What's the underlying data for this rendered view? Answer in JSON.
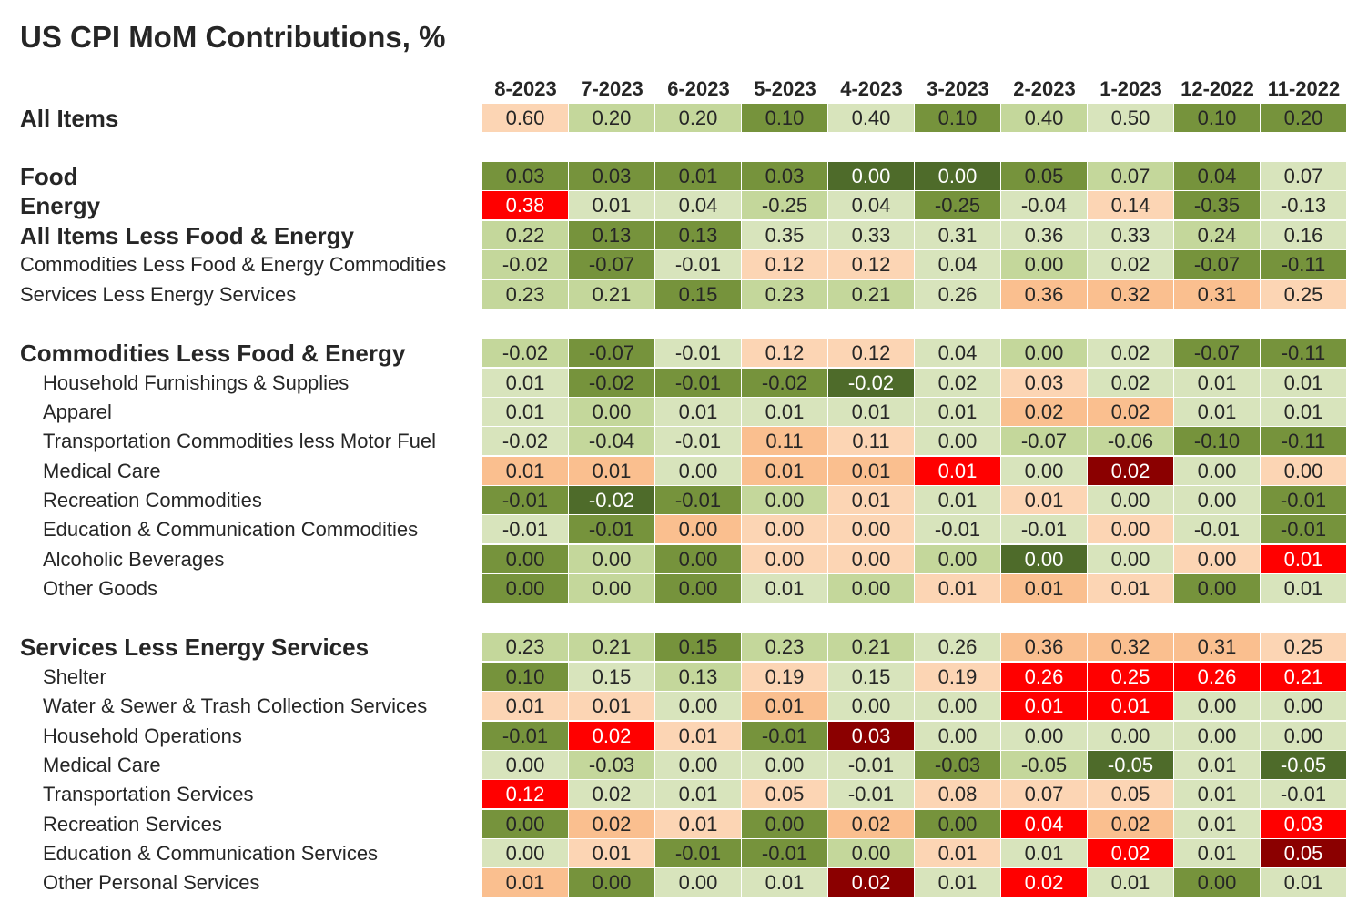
{
  "title": "US CPI MoM Contributions, %",
  "columns": [
    "8-2023",
    "7-2023",
    "6-2023",
    "5-2023",
    "4-2023",
    "3-2023",
    "2-2023",
    "1-2023",
    "12-2022",
    "11-2022"
  ],
  "palette": {
    "dark_green": "#4e6b2a",
    "green": "#76933c",
    "light_green": "#c4d79b",
    "pale_green": "#d8e4bc",
    "pale_orange": "#fcd5b4",
    "orange": "#fabf8f",
    "red": "#ff0000",
    "dark_red": "#8b0000"
  },
  "chart_data": {
    "type": "heatmap",
    "title": "US CPI MoM Contributions, %",
    "x": [
      "8-2023",
      "7-2023",
      "6-2023",
      "5-2023",
      "4-2023",
      "3-2023",
      "2-2023",
      "1-2023",
      "12-2022",
      "11-2022"
    ],
    "rows": [
      {
        "label": "All Items",
        "style": "bold",
        "values": [
          "0.60",
          "0.20",
          "0.20",
          "0.10",
          "0.40",
          "0.10",
          "0.40",
          "0.50",
          "0.10",
          "0.20"
        ],
        "colors": [
          "po",
          "lg",
          "lg",
          "g",
          "pg",
          "g",
          "lg",
          "pg",
          "g",
          "g"
        ]
      },
      {
        "label": "Food",
        "style": "bold",
        "values": [
          "0.03",
          "0.03",
          "0.01",
          "0.03",
          "0.00",
          "0.00",
          "0.05",
          "0.07",
          "0.04",
          "0.07"
        ],
        "colors": [
          "g",
          "g",
          "g",
          "g",
          "dg",
          "dg",
          "g",
          "lg",
          "g",
          "pg"
        ]
      },
      {
        "label": "Energy",
        "style": "bold",
        "values": [
          "0.38",
          "0.01",
          "0.04",
          "-0.25",
          "0.04",
          "-0.25",
          "-0.04",
          "0.14",
          "-0.35",
          "-0.13"
        ],
        "colors": [
          "r",
          "pg",
          "pg",
          "lg",
          "pg",
          "g",
          "pg",
          "po",
          "g",
          "pg"
        ]
      },
      {
        "label": "All Items Less Food & Energy",
        "style": "bold",
        "values": [
          "0.22",
          "0.13",
          "0.13",
          "0.35",
          "0.33",
          "0.31",
          "0.36",
          "0.33",
          "0.24",
          "0.16"
        ],
        "colors": [
          "lg",
          "g",
          "g",
          "pg",
          "pg",
          "pg",
          "pg",
          "pg",
          "lg",
          "pg"
        ]
      },
      {
        "label": "Commodities Less Food & Energy Commodities",
        "style": "reg",
        "values": [
          "-0.02",
          "-0.07",
          "-0.01",
          "0.12",
          "0.12",
          "0.04",
          "0.00",
          "0.02",
          "-0.07",
          "-0.11"
        ],
        "colors": [
          "lg",
          "g",
          "pg",
          "po",
          "po",
          "pg",
          "lg",
          "pg",
          "g",
          "g"
        ]
      },
      {
        "label": "Services Less Energy Services",
        "style": "reg",
        "values": [
          "0.23",
          "0.21",
          "0.15",
          "0.23",
          "0.21",
          "0.26",
          "0.36",
          "0.32",
          "0.31",
          "0.25"
        ],
        "colors": [
          "lg",
          "lg",
          "g",
          "lg",
          "lg",
          "pg",
          "o",
          "o",
          "o",
          "po"
        ]
      },
      {
        "label": "Commodities Less Food & Energy",
        "style": "bold",
        "values": [
          "-0.02",
          "-0.07",
          "-0.01",
          "0.12",
          "0.12",
          "0.04",
          "0.00",
          "0.02",
          "-0.07",
          "-0.11"
        ],
        "colors": [
          "lg",
          "g",
          "pg",
          "po",
          "po",
          "pg",
          "lg",
          "pg",
          "g",
          "g"
        ]
      },
      {
        "label": "Household Furnishings & Supplies",
        "style": "reg",
        "values": [
          "0.01",
          "-0.02",
          "-0.01",
          "-0.02",
          "-0.02",
          "0.02",
          "0.03",
          "0.02",
          "0.01",
          "0.01"
        ],
        "colors": [
          "pg",
          "g",
          "g",
          "g",
          "dg",
          "pg",
          "po",
          "pg",
          "pg",
          "pg"
        ]
      },
      {
        "label": "Apparel",
        "style": "reg",
        "values": [
          "0.01",
          "0.00",
          "0.01",
          "0.01",
          "0.01",
          "0.01",
          "0.02",
          "0.02",
          "0.01",
          "0.01"
        ],
        "colors": [
          "pg",
          "lg",
          "pg",
          "pg",
          "pg",
          "pg",
          "o",
          "o",
          "pg",
          "pg"
        ]
      },
      {
        "label": "Transportation Commodities less Motor Fuel",
        "style": "reg",
        "values": [
          "-0.02",
          "-0.04",
          "-0.01",
          "0.11",
          "0.11",
          "0.00",
          "-0.07",
          "-0.06",
          "-0.10",
          "-0.11"
        ],
        "colors": [
          "pg",
          "lg",
          "pg",
          "o",
          "po",
          "pg",
          "lg",
          "lg",
          "g",
          "g"
        ]
      },
      {
        "label": "Medical Care",
        "style": "reg",
        "values": [
          "0.01",
          "0.01",
          "0.00",
          "0.01",
          "0.01",
          "0.01",
          "0.00",
          "0.02",
          "0.00",
          "0.00"
        ],
        "colors": [
          "o",
          "o",
          "pg",
          "o",
          "o",
          "r",
          "pg",
          "dr",
          "pg",
          "po"
        ]
      },
      {
        "label": "Recreation Commodities",
        "style": "reg",
        "values": [
          "-0.01",
          "-0.02",
          "-0.01",
          "0.00",
          "0.01",
          "0.01",
          "0.01",
          "0.00",
          "0.00",
          "-0.01"
        ],
        "colors": [
          "g",
          "dg",
          "g",
          "lg",
          "po",
          "pg",
          "po",
          "pg",
          "pg",
          "g"
        ]
      },
      {
        "label": "Education & Communication Commodities",
        "style": "reg",
        "values": [
          "-0.01",
          "-0.01",
          "0.00",
          "0.00",
          "0.00",
          "-0.01",
          "-0.01",
          "0.00",
          "-0.01",
          "-0.01"
        ],
        "colors": [
          "pg",
          "g",
          "o",
          "po",
          "po",
          "pg",
          "pg",
          "po",
          "pg",
          "g"
        ]
      },
      {
        "label": "Alcoholic Beverages",
        "style": "reg",
        "values": [
          "0.00",
          "0.00",
          "0.00",
          "0.00",
          "0.00",
          "0.00",
          "0.00",
          "0.00",
          "0.00",
          "0.01"
        ],
        "colors": [
          "g",
          "lg",
          "g",
          "po",
          "po",
          "lg",
          "dg",
          "pg",
          "po",
          "r"
        ]
      },
      {
        "label": "Other Goods",
        "style": "reg",
        "values": [
          "0.00",
          "0.00",
          "0.00",
          "0.01",
          "0.00",
          "0.01",
          "0.01",
          "0.01",
          "0.00",
          "0.01"
        ],
        "colors": [
          "g",
          "lg",
          "g",
          "pg",
          "lg",
          "po",
          "o",
          "po",
          "g",
          "pg"
        ]
      },
      {
        "label": "Services Less Energy Services",
        "style": "bold",
        "values": [
          "0.23",
          "0.21",
          "0.15",
          "0.23",
          "0.21",
          "0.26",
          "0.36",
          "0.32",
          "0.31",
          "0.25"
        ],
        "colors": [
          "lg",
          "lg",
          "g",
          "lg",
          "lg",
          "pg",
          "o",
          "o",
          "o",
          "po"
        ]
      },
      {
        "label": "Shelter",
        "style": "reg",
        "values": [
          "0.10",
          "0.15",
          "0.13",
          "0.19",
          "0.15",
          "0.19",
          "0.26",
          "0.25",
          "0.26",
          "0.21"
        ],
        "colors": [
          "g",
          "pg",
          "lg",
          "po",
          "pg",
          "po",
          "r",
          "r",
          "r",
          "r"
        ]
      },
      {
        "label": "Water & Sewer & Trash Collection Services",
        "style": "reg",
        "values": [
          "0.01",
          "0.01",
          "0.00",
          "0.01",
          "0.00",
          "0.00",
          "0.01",
          "0.01",
          "0.00",
          "0.00"
        ],
        "colors": [
          "po",
          "po",
          "pg",
          "o",
          "pg",
          "pg",
          "r",
          "r",
          "pg",
          "pg"
        ]
      },
      {
        "label": "Household Operations",
        "style": "reg",
        "values": [
          "-0.01",
          "0.02",
          "0.01",
          "-0.01",
          "0.03",
          "0.00",
          "0.00",
          "0.00",
          "0.00",
          "0.00"
        ],
        "colors": [
          "g",
          "r",
          "po",
          "g",
          "dr",
          "pg",
          "pg",
          "pg",
          "pg",
          "pg"
        ]
      },
      {
        "label": "Medical Care",
        "style": "reg",
        "values": [
          "0.00",
          "-0.03",
          "0.00",
          "0.00",
          "-0.01",
          "-0.03",
          "-0.05",
          "-0.05",
          "0.01",
          "-0.05"
        ],
        "colors": [
          "pg",
          "lg",
          "pg",
          "pg",
          "pg",
          "g",
          "lg",
          "dg",
          "pg",
          "dg"
        ]
      },
      {
        "label": "Transportation Services",
        "style": "reg",
        "values": [
          "0.12",
          "0.02",
          "0.01",
          "0.05",
          "-0.01",
          "0.08",
          "0.07",
          "0.05",
          "0.01",
          "-0.01"
        ],
        "colors": [
          "r",
          "pg",
          "pg",
          "po",
          "pg",
          "po",
          "po",
          "po",
          "pg",
          "pg"
        ]
      },
      {
        "label": "Recreation Services",
        "style": "reg",
        "values": [
          "0.00",
          "0.02",
          "0.01",
          "0.00",
          "0.02",
          "0.00",
          "0.04",
          "0.02",
          "0.01",
          "0.03"
        ],
        "colors": [
          "g",
          "o",
          "po",
          "g",
          "o",
          "g",
          "r",
          "o",
          "pg",
          "r"
        ]
      },
      {
        "label": "Education & Communication Services",
        "style": "reg",
        "values": [
          "0.00",
          "0.01",
          "-0.01",
          "-0.01",
          "0.00",
          "0.01",
          "0.01",
          "0.02",
          "0.01",
          "0.05"
        ],
        "colors": [
          "pg",
          "po",
          "g",
          "g",
          "lg",
          "po",
          "pg",
          "r",
          "pg",
          "dr"
        ]
      },
      {
        "label": "Other Personal Services",
        "style": "reg",
        "values": [
          "0.01",
          "0.00",
          "0.00",
          "0.01",
          "0.02",
          "0.01",
          "0.02",
          "0.01",
          "0.00",
          "0.01"
        ],
        "colors": [
          "o",
          "g",
          "pg",
          "pg",
          "dr",
          "pg",
          "r",
          "pg",
          "g",
          "pg"
        ]
      }
    ]
  }
}
